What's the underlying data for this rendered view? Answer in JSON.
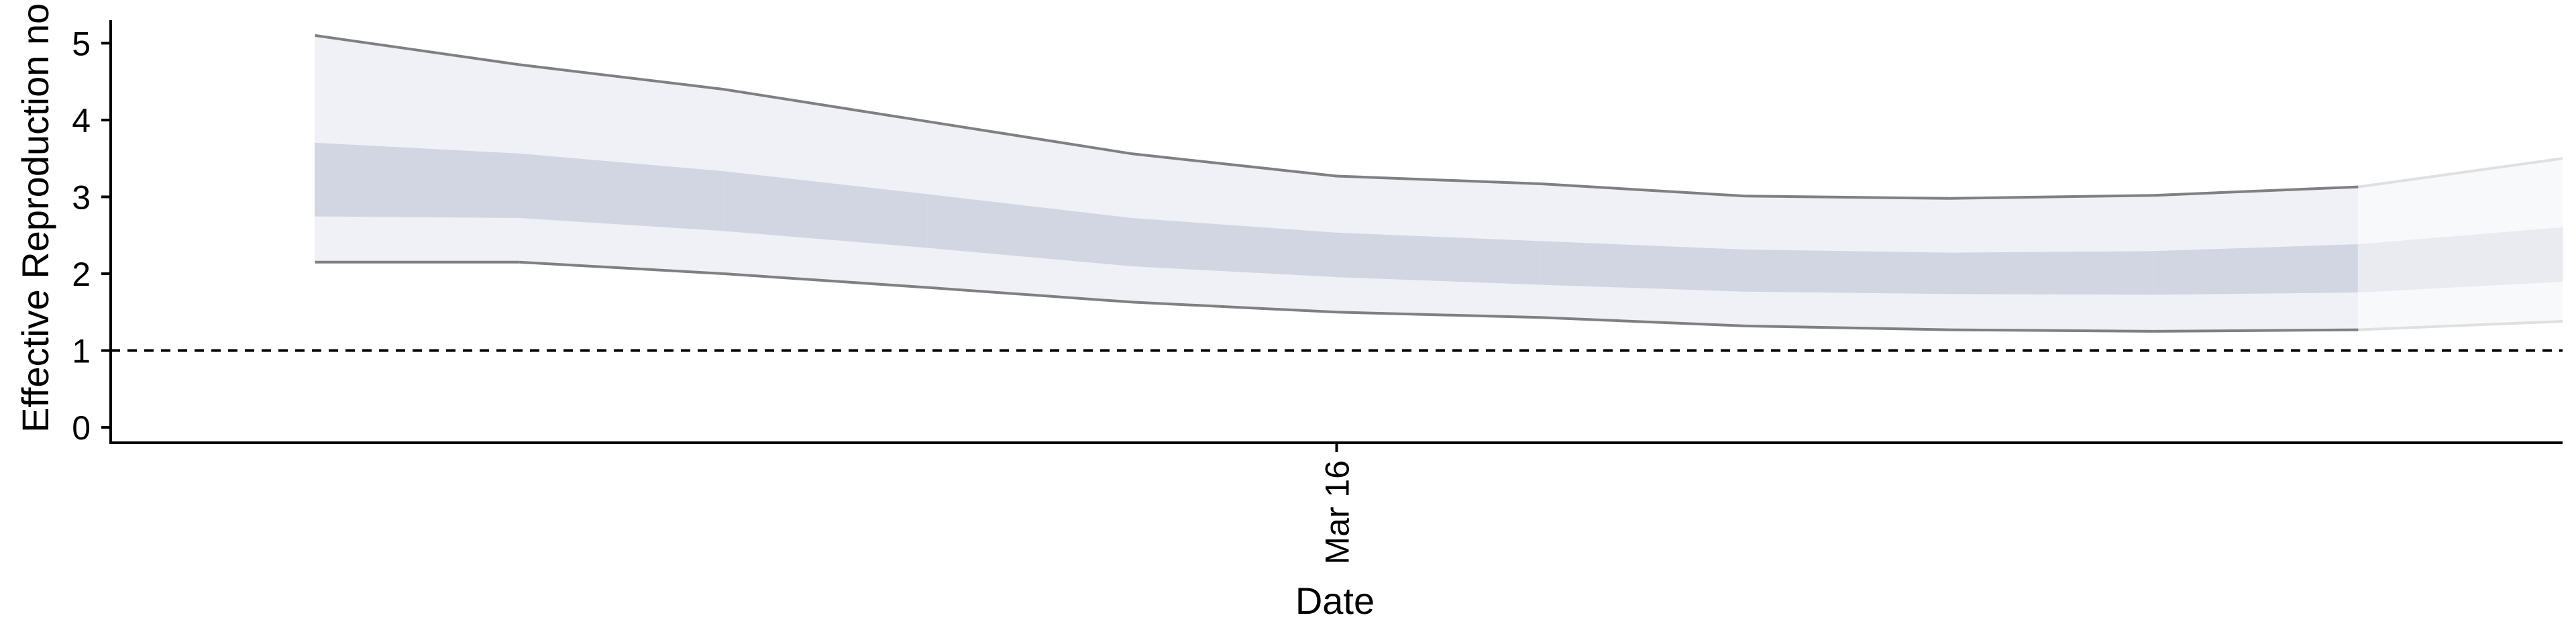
{
  "chart_data": {
    "type": "area",
    "title": "",
    "xlabel": "Date",
    "ylabel": "Effective Reproduction no.",
    "x_ticks": [
      {
        "label": "Mar 16",
        "x": "2020-03-16"
      }
    ],
    "y_ticks": [
      0,
      1,
      2,
      3,
      4,
      5
    ],
    "ylim": [
      -0.2,
      5.3
    ],
    "xlim": [
      "2020-03-10",
      "2020-03-22"
    ],
    "grid": false,
    "legend": "none",
    "reference_line": {
      "y": 1,
      "style": "dashed",
      "color": "#000000"
    },
    "dates": [
      "2020-03-11",
      "2020-03-12",
      "2020-03-13",
      "2020-03-14",
      "2020-03-15",
      "2020-03-16",
      "2020-03-17",
      "2020-03-18",
      "2020-03-19",
      "2020-03-20",
      "2020-03-21",
      "2020-03-22"
    ],
    "estimate_type": [
      "estimate",
      "estimate",
      "estimate",
      "estimate",
      "estimate",
      "estimate",
      "estimate",
      "estimate",
      "estimate",
      "estimate",
      "estimate",
      "forecast"
    ],
    "series": [
      {
        "name": "lower_90",
        "values": [
          2.15,
          2.15,
          2.0,
          1.82,
          1.63,
          1.5,
          1.43,
          1.32,
          1.27,
          1.25,
          1.27,
          1.38
        ]
      },
      {
        "name": "upper_90",
        "values": [
          5.1,
          4.72,
          4.4,
          3.98,
          3.56,
          3.27,
          3.17,
          3.01,
          2.98,
          3.02,
          3.13,
          3.5
        ]
      },
      {
        "name": "lower_50",
        "values": [
          2.75,
          2.73,
          2.56,
          2.34,
          2.1,
          1.96,
          1.86,
          1.77,
          1.74,
          1.73,
          1.76,
          1.9
        ]
      },
      {
        "name": "upper_50",
        "values": [
          3.7,
          3.56,
          3.33,
          3.03,
          2.72,
          2.53,
          2.42,
          2.31,
          2.27,
          2.29,
          2.38,
          2.6
        ]
      }
    ],
    "colors": {
      "outer_band": "#f0f1f6",
      "inner_band": "#d2d6e3",
      "bound_line": "#808080",
      "forecast_outer_band": "#f8f9fb",
      "forecast_inner_band": "#eaebf0",
      "forecast_line": "#e0e0e0"
    }
  }
}
